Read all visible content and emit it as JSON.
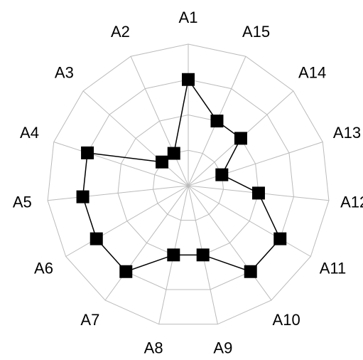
{
  "chart_data": {
    "type": "radar",
    "categories": [
      "A1",
      "A2",
      "A3",
      "A4",
      "A5",
      "A6",
      "A7",
      "A8",
      "A9",
      "A10",
      "A11",
      "A12",
      "A13",
      "A14",
      "A15"
    ],
    "values": [
      3,
      1,
      1,
      3,
      3,
      3,
      3,
      2,
      2,
      3,
      3,
      2,
      1,
      2,
      2
    ],
    "color": "#000000",
    "ylim": [
      0,
      4
    ],
    "yticks": [
      0,
      1,
      2,
      3,
      4
    ],
    "grid": true
  }
}
